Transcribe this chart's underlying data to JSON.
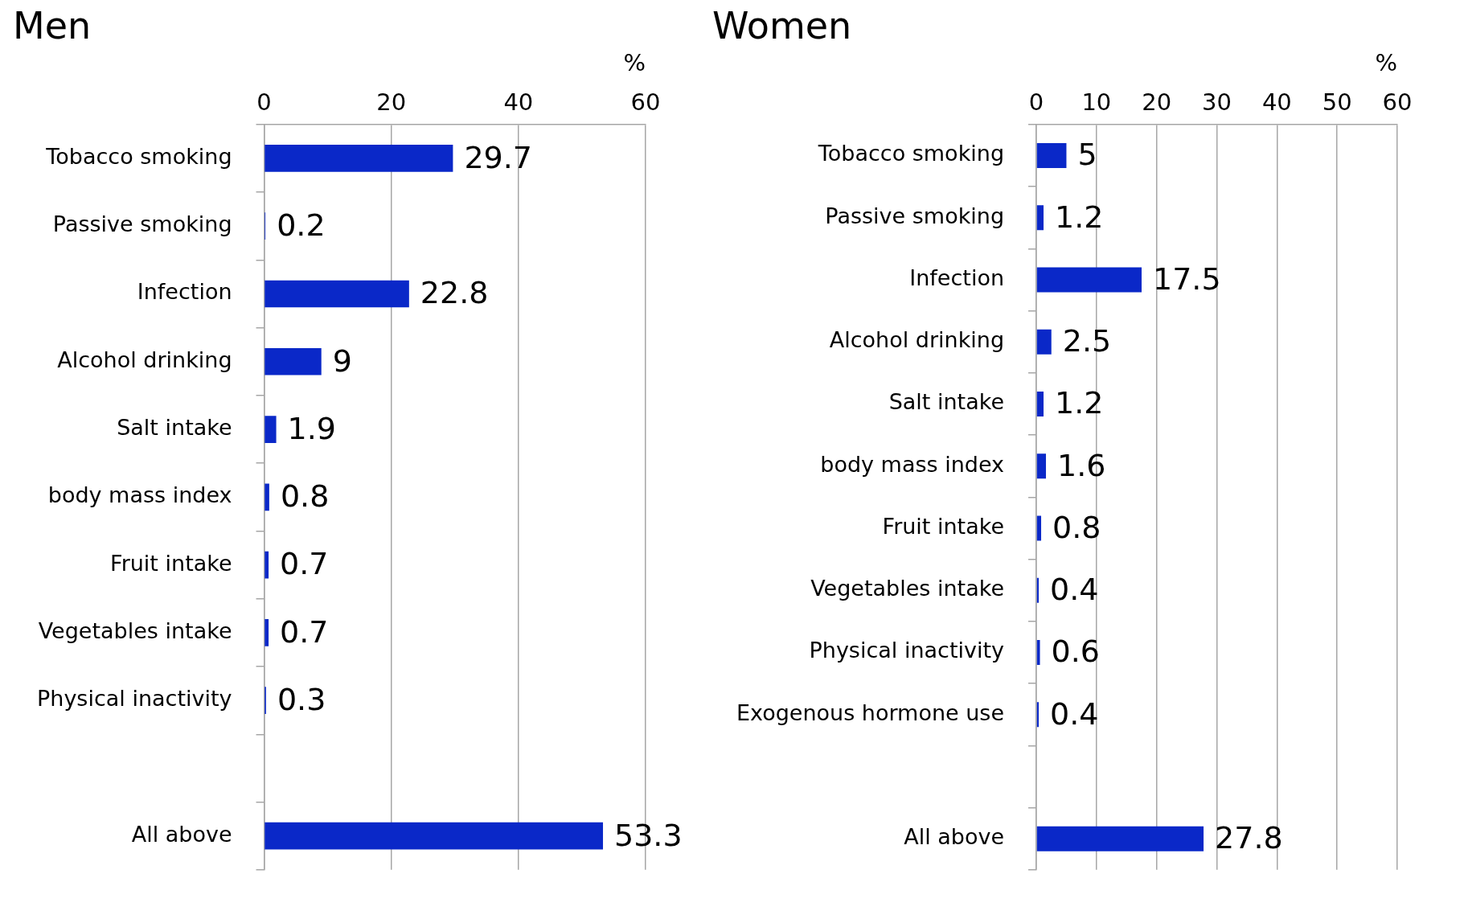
{
  "chart_data": [
    {
      "type": "bar",
      "orientation": "horizontal",
      "title": "Men",
      "xlabel": "%",
      "categories": [
        "Tobacco smoking",
        "Passive smoking",
        "Infection",
        "Alcohol drinking",
        "Salt intake",
        "body mass index",
        "Fruit intake",
        "Vegetables intake",
        "Physical inactivity",
        null,
        "All above"
      ],
      "values": [
        29.7,
        0.2,
        22.8,
        9,
        1.9,
        0.8,
        0.7,
        0.7,
        0.3,
        null,
        53.3
      ],
      "color": "#0a28c8",
      "xlim": [
        0,
        60
      ],
      "xticks": [
        0,
        20,
        40,
        60
      ],
      "grid": "x",
      "data_labels": true,
      "legend": false
    },
    {
      "type": "bar",
      "orientation": "horizontal",
      "title": "Women",
      "xlabel": "%",
      "categories": [
        "Tobacco smoking",
        "Passive smoking",
        "Infection",
        "Alcohol drinking",
        "Salt intake",
        "body mass index",
        "Fruit intake",
        "Vegetables intake",
        "Physical inactivity",
        "Exogenous hormone use",
        null,
        "All above"
      ],
      "values": [
        5,
        1.2,
        17.5,
        2.5,
        1.2,
        1.6,
        0.8,
        0.4,
        0.6,
        0.4,
        null,
        27.8
      ],
      "color": "#0a28c8",
      "xlim": [
        0,
        60
      ],
      "xticks": [
        0,
        10,
        20,
        30,
        40,
        50,
        60
      ],
      "grid": "x",
      "data_labels": true,
      "legend": false
    }
  ]
}
